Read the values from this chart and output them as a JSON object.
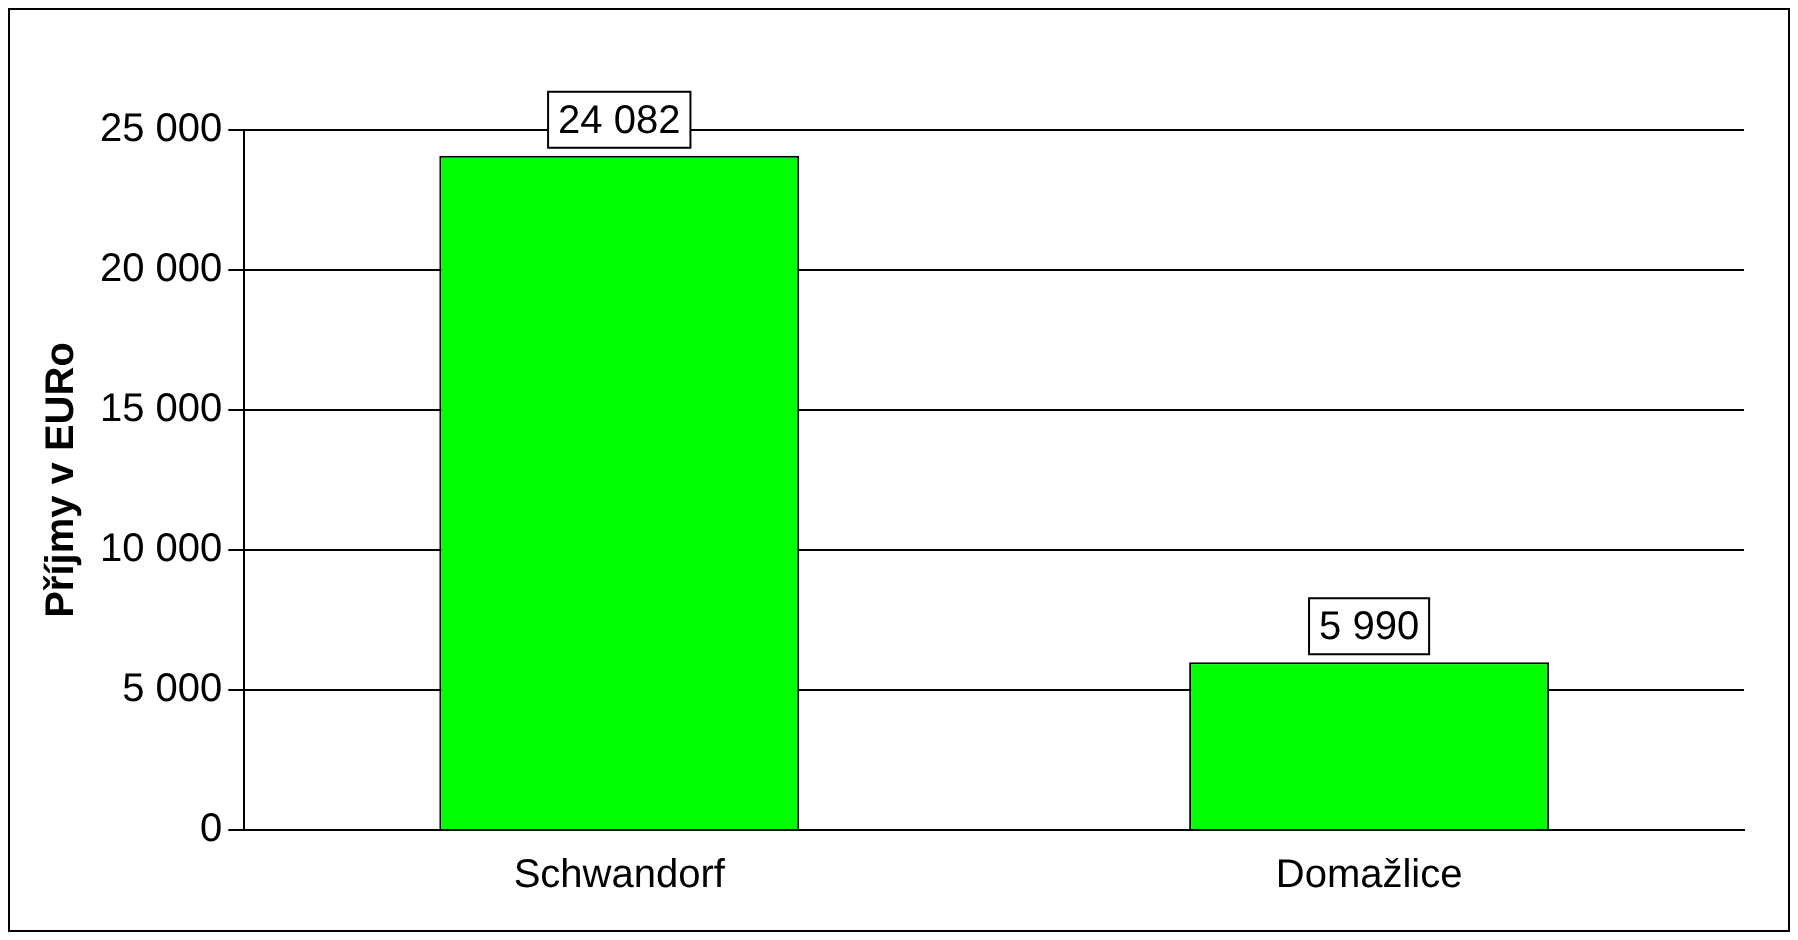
{
  "chart_data": {
    "type": "bar",
    "ylabel": "Příjmy v EURo",
    "categories": [
      "Schwandorf",
      "Domažlice"
    ],
    "values": [
      24082,
      5990
    ],
    "value_labels": [
      "24 082",
      "5 990"
    ],
    "color": "#00ff00",
    "ylim": [
      0,
      25000
    ],
    "yticks": [
      {
        "value": 0,
        "label": "0"
      },
      {
        "value": 5000,
        "label": "5 000"
      },
      {
        "value": 10000,
        "label": "10 000"
      },
      {
        "value": 15000,
        "label": "15 000"
      },
      {
        "value": 20000,
        "label": "20 000"
      },
      {
        "value": 25000,
        "label": "25 000"
      }
    ],
    "grid": "y",
    "legend": false
  }
}
